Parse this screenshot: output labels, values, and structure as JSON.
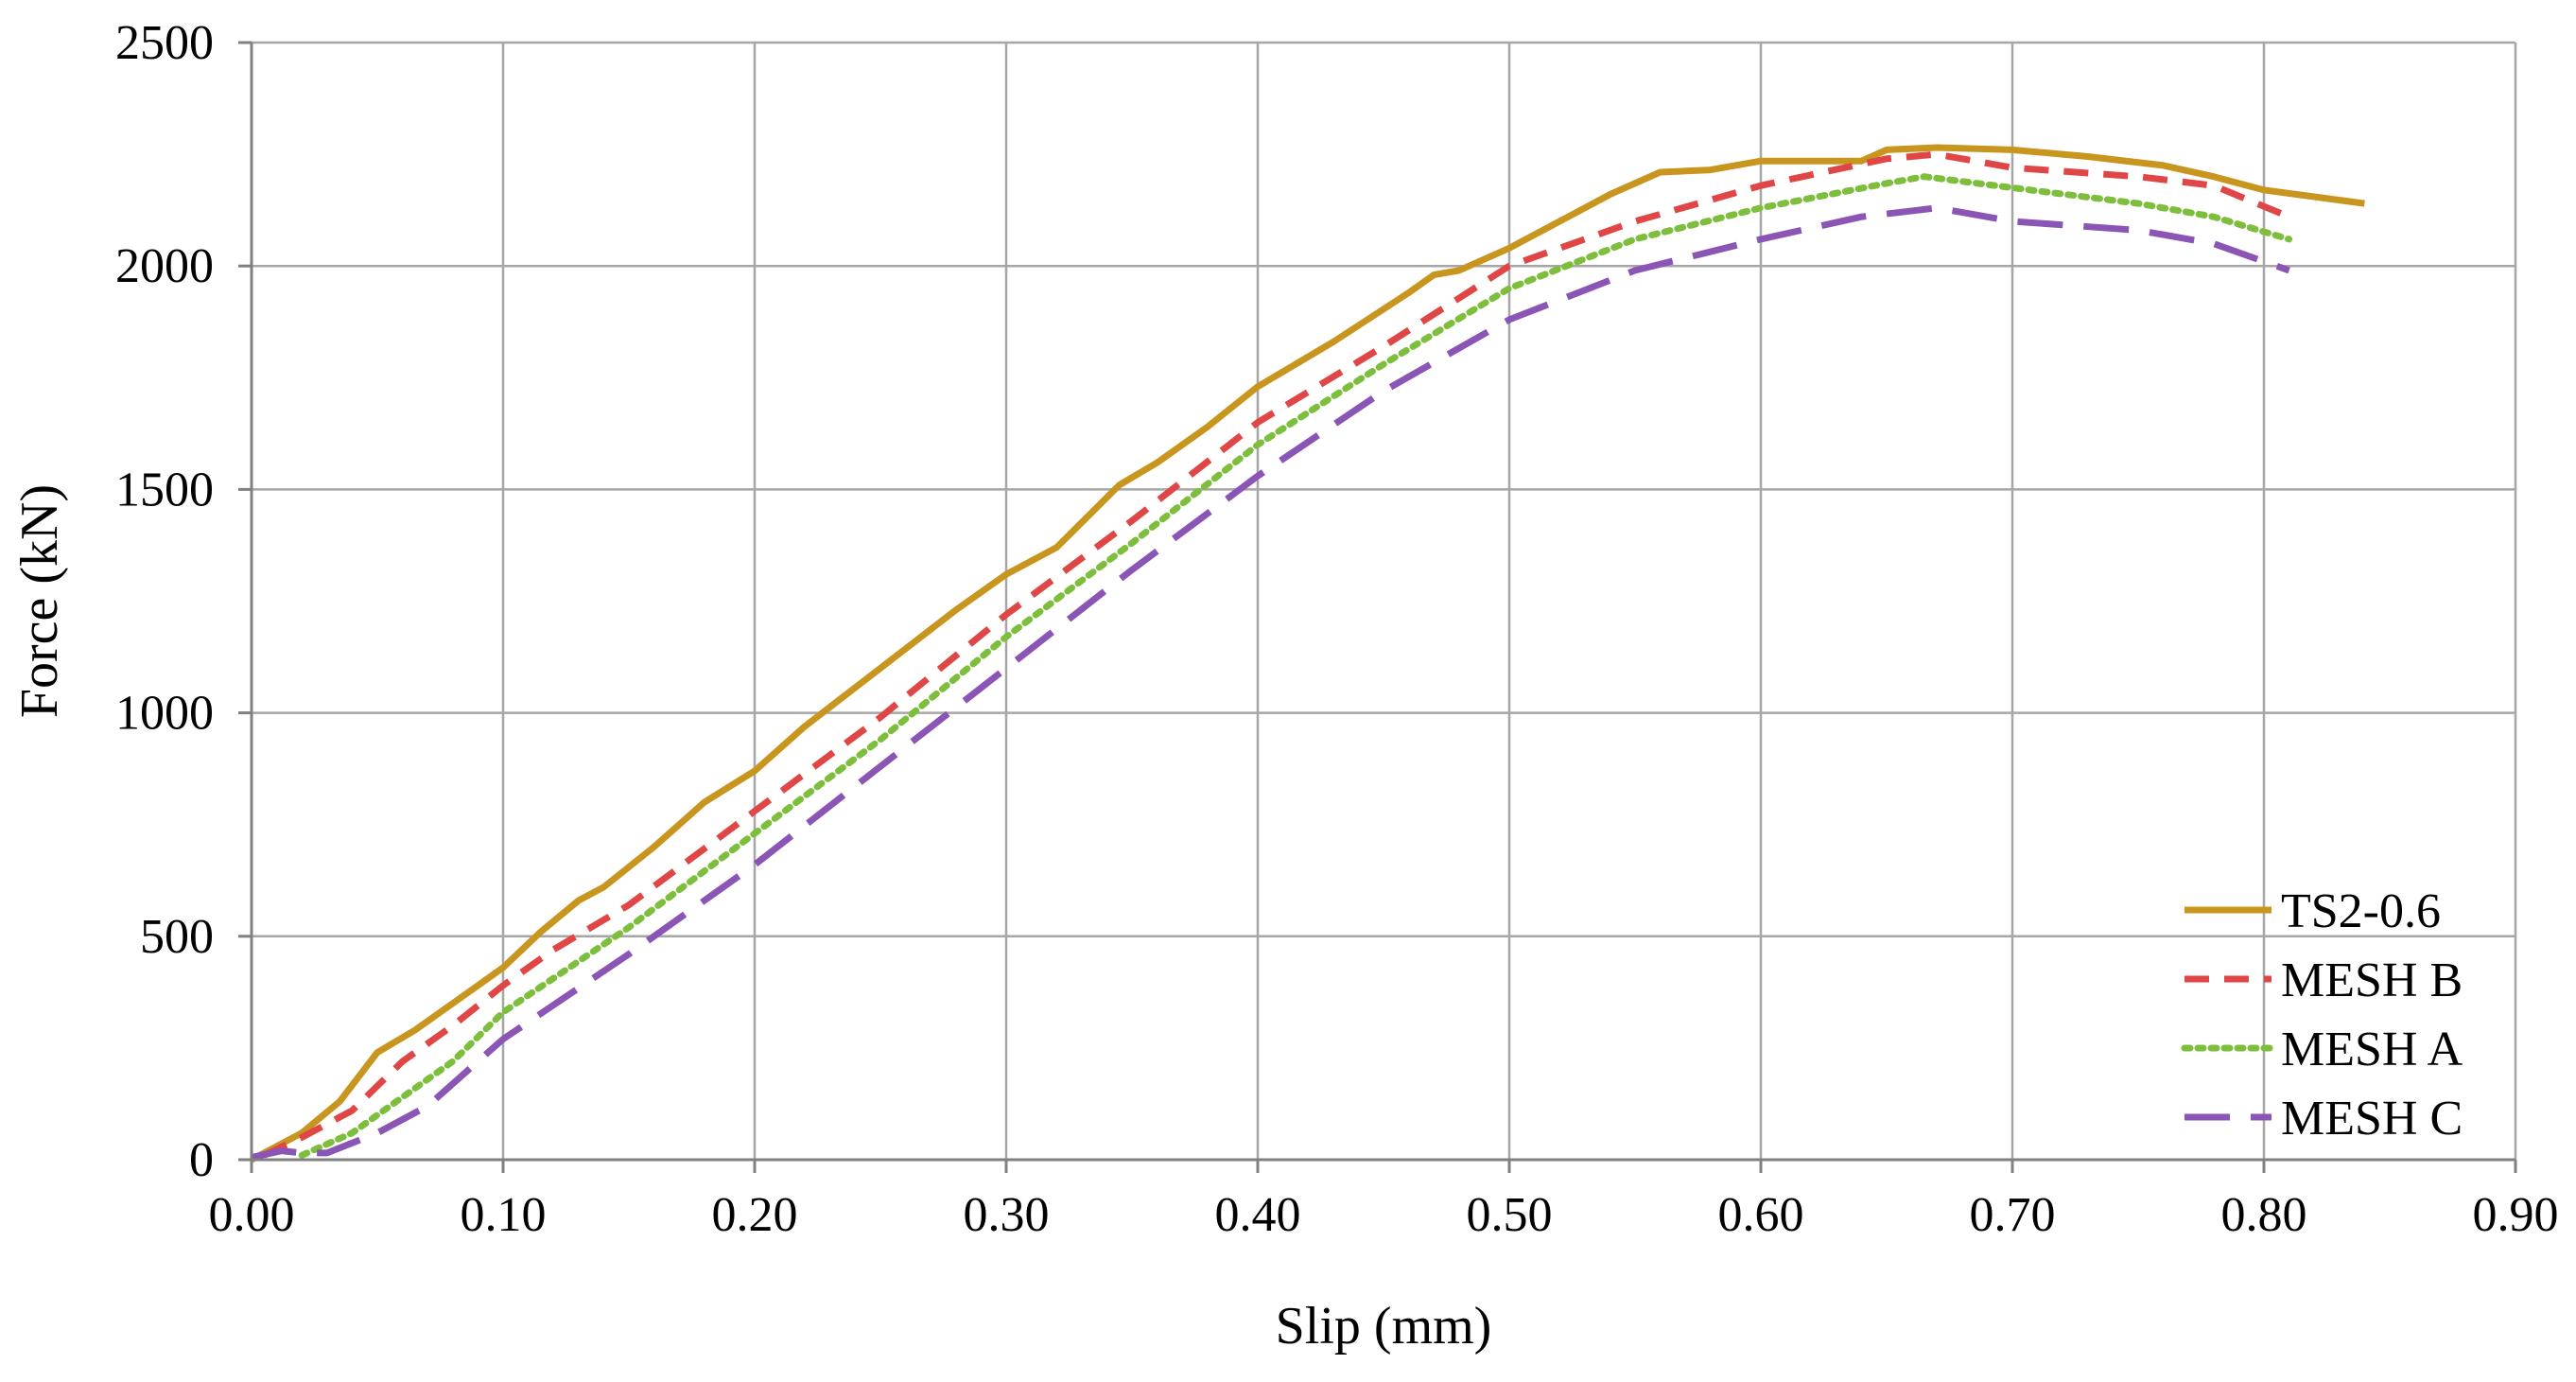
{
  "chart_data": {
    "type": "line",
    "title": "",
    "xlabel": "Slip (mm)",
    "ylabel": "Force (kN)",
    "xlim": [
      0,
      0.9
    ],
    "ylim": [
      0,
      2500
    ],
    "x_ticks": [
      0,
      0.1,
      0.2,
      0.3,
      0.4,
      0.5,
      0.6,
      0.7,
      0.8,
      0.9
    ],
    "x_tick_labels": [
      "0.00",
      "0.10",
      "0.20",
      "0.30",
      "0.40",
      "0.50",
      "0.60",
      "0.70",
      "0.80",
      "0.90"
    ],
    "y_ticks": [
      0,
      500,
      1000,
      1500,
      2000,
      2500
    ],
    "y_tick_labels": [
      "0",
      "500",
      "1000",
      "1500",
      "2000",
      "2500"
    ],
    "grid": true,
    "legend_position": "bottom-right",
    "series": [
      {
        "name": "TS2-0.6",
        "color": "#c8961e",
        "style": "solid",
        "points": [
          [
            0,
            0
          ],
          [
            0.02,
            60
          ],
          [
            0.035,
            130
          ],
          [
            0.05,
            240
          ],
          [
            0.065,
            290
          ],
          [
            0.08,
            350
          ],
          [
            0.1,
            430
          ],
          [
            0.115,
            510
          ],
          [
            0.13,
            580
          ],
          [
            0.14,
            610
          ],
          [
            0.16,
            700
          ],
          [
            0.18,
            800
          ],
          [
            0.2,
            870
          ],
          [
            0.22,
            970
          ],
          [
            0.25,
            1100
          ],
          [
            0.28,
            1230
          ],
          [
            0.3,
            1310
          ],
          [
            0.32,
            1370
          ],
          [
            0.345,
            1510
          ],
          [
            0.36,
            1560
          ],
          [
            0.38,
            1640
          ],
          [
            0.4,
            1730
          ],
          [
            0.43,
            1830
          ],
          [
            0.46,
            1940
          ],
          [
            0.47,
            1980
          ],
          [
            0.48,
            1990
          ],
          [
            0.5,
            2040
          ],
          [
            0.52,
            2100
          ],
          [
            0.54,
            2160
          ],
          [
            0.56,
            2210
          ],
          [
            0.58,
            2215
          ],
          [
            0.6,
            2235
          ],
          [
            0.62,
            2235
          ],
          [
            0.64,
            2235
          ],
          [
            0.65,
            2260
          ],
          [
            0.67,
            2265
          ],
          [
            0.7,
            2260
          ],
          [
            0.73,
            2245
          ],
          [
            0.76,
            2225
          ],
          [
            0.78,
            2200
          ],
          [
            0.8,
            2170
          ],
          [
            0.84,
            2140
          ]
        ]
      },
      {
        "name": "MESH B",
        "color": "#e04646",
        "style": "dashed",
        "points": [
          [
            0.005,
            10
          ],
          [
            0.02,
            50
          ],
          [
            0.04,
            110
          ],
          [
            0.06,
            220
          ],
          [
            0.08,
            300
          ],
          [
            0.1,
            390
          ],
          [
            0.12,
            470
          ],
          [
            0.15,
            570
          ],
          [
            0.2,
            780
          ],
          [
            0.25,
            990
          ],
          [
            0.3,
            1220
          ],
          [
            0.35,
            1430
          ],
          [
            0.4,
            1650
          ],
          [
            0.45,
            1820
          ],
          [
            0.5,
            2000
          ],
          [
            0.55,
            2100
          ],
          [
            0.6,
            2180
          ],
          [
            0.65,
            2240
          ],
          [
            0.67,
            2250
          ],
          [
            0.7,
            2220
          ],
          [
            0.75,
            2200
          ],
          [
            0.78,
            2180
          ],
          [
            0.81,
            2110
          ]
        ]
      },
      {
        "name": "MESH A",
        "color": "#7dbe3c",
        "style": "dotted",
        "points": [
          [
            0.02,
            10
          ],
          [
            0.04,
            60
          ],
          [
            0.06,
            140
          ],
          [
            0.08,
            220
          ],
          [
            0.1,
            330
          ],
          [
            0.15,
            520
          ],
          [
            0.2,
            730
          ],
          [
            0.25,
            940
          ],
          [
            0.3,
            1170
          ],
          [
            0.35,
            1380
          ],
          [
            0.4,
            1600
          ],
          [
            0.45,
            1780
          ],
          [
            0.5,
            1950
          ],
          [
            0.55,
            2060
          ],
          [
            0.6,
            2130
          ],
          [
            0.65,
            2185
          ],
          [
            0.665,
            2200
          ],
          [
            0.7,
            2175
          ],
          [
            0.75,
            2140
          ],
          [
            0.78,
            2110
          ],
          [
            0.81,
            2060
          ]
        ]
      },
      {
        "name": "MESH C",
        "color": "#8a55b4",
        "style": "longdash",
        "points": [
          [
            0,
            5
          ],
          [
            0.012,
            20
          ],
          [
            0.02,
            15
          ],
          [
            0.03,
            15
          ],
          [
            0.05,
            60
          ],
          [
            0.07,
            120
          ],
          [
            0.1,
            270
          ],
          [
            0.15,
            460
          ],
          [
            0.2,
            660
          ],
          [
            0.25,
            880
          ],
          [
            0.3,
            1100
          ],
          [
            0.35,
            1320
          ],
          [
            0.4,
            1530
          ],
          [
            0.45,
            1720
          ],
          [
            0.5,
            1880
          ],
          [
            0.55,
            1990
          ],
          [
            0.6,
            2060
          ],
          [
            0.64,
            2110
          ],
          [
            0.67,
            2130
          ],
          [
            0.7,
            2100
          ],
          [
            0.75,
            2080
          ],
          [
            0.78,
            2050
          ],
          [
            0.81,
            1990
          ]
        ]
      }
    ]
  }
}
